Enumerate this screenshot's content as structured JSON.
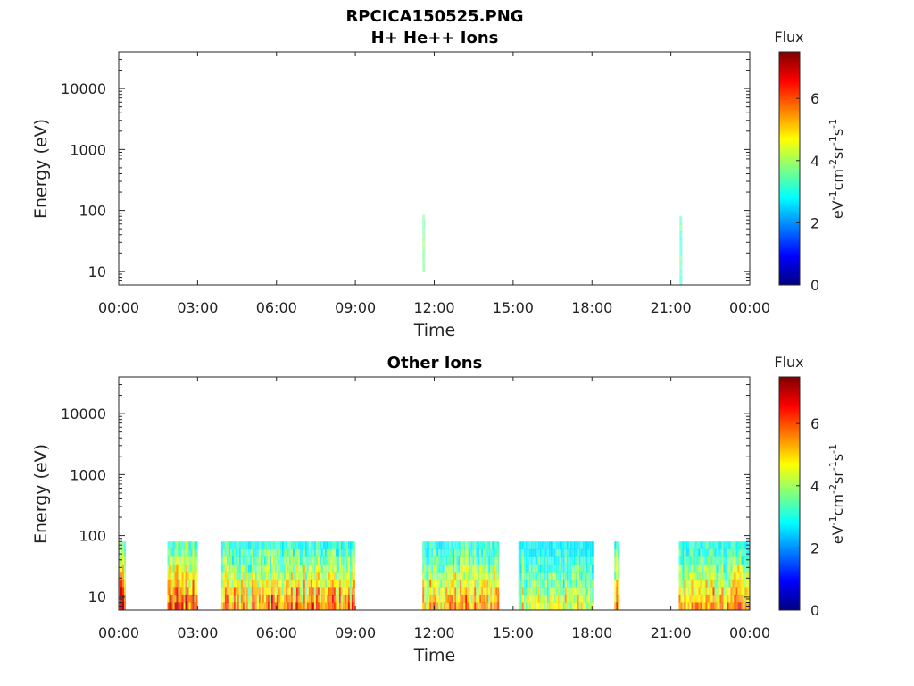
{
  "figure": {
    "title": "RPCICA150525.PNG"
  },
  "chart_data": [
    {
      "type": "heatmap",
      "title": "H+ He++ Ions",
      "xlabel": "Time",
      "ylabel": "Energy (eV)",
      "x_ticks": [
        "00:00",
        "03:00",
        "06:00",
        "09:00",
        "12:00",
        "15:00",
        "18:00",
        "21:00",
        "00:00"
      ],
      "xlim_hours": [
        0,
        24
      ],
      "y_scale": "log",
      "ylim": [
        6,
        40000
      ],
      "y_ticks": [
        10,
        100,
        1000,
        10000
      ],
      "y_tick_labels": [
        "10",
        "100",
        "1000",
        "10000"
      ],
      "colorbar": {
        "title": "Flux",
        "label": "eV-1cm-2sr-1s-1",
        "range": [
          0,
          7.5
        ],
        "ticks": [
          0,
          2,
          4,
          6
        ],
        "tick_labels": [
          "0",
          "2",
          "4",
          "6"
        ],
        "colormap": "jet"
      },
      "bursts": [
        {
          "start_hour": 11.55,
          "end_hour": 11.62,
          "energy_min": 10,
          "energy_max": 85,
          "level": 3.8
        },
        {
          "start_hour": 21.33,
          "end_hour": 21.4,
          "energy_min": 6,
          "energy_max": 80,
          "level": 3.5
        }
      ]
    },
    {
      "type": "heatmap",
      "title": "Other Ions",
      "xlabel": "Time",
      "ylabel": "Energy (eV)",
      "x_ticks": [
        "00:00",
        "03:00",
        "06:00",
        "09:00",
        "12:00",
        "15:00",
        "18:00",
        "21:00",
        "00:00"
      ],
      "xlim_hours": [
        0,
        24
      ],
      "y_scale": "log",
      "ylim": [
        6,
        40000
      ],
      "y_ticks": [
        10,
        100,
        1000,
        10000
      ],
      "y_tick_labels": [
        "10",
        "100",
        "1000",
        "10000"
      ],
      "colorbar": {
        "title": "Flux",
        "label": "eV-1cm-2sr-1s-1",
        "range": [
          0,
          7.5
        ],
        "ticks": [
          0,
          2,
          4,
          6
        ],
        "tick_labels": [
          "0",
          "2",
          "4",
          "6"
        ],
        "colormap": "jet"
      },
      "bursts": [
        {
          "start_hour": 0.0,
          "end_hour": 0.25,
          "energy_min": 6,
          "energy_max": 80,
          "level": 6.8
        },
        {
          "start_hour": 1.85,
          "end_hour": 3.0,
          "energy_min": 6,
          "energy_max": 80,
          "level": 6.8
        },
        {
          "start_hour": 3.9,
          "end_hour": 8.95,
          "energy_min": 6,
          "energy_max": 80,
          "level": 5.9
        },
        {
          "start_hour": 11.55,
          "end_hour": 14.45,
          "energy_min": 6,
          "energy_max": 80,
          "level": 5.7
        },
        {
          "start_hour": 15.2,
          "end_hour": 18.0,
          "energy_min": 6,
          "energy_max": 80,
          "level": 4.9
        },
        {
          "start_hour": 18.85,
          "end_hour": 19.05,
          "energy_min": 6,
          "energy_max": 80,
          "level": 6.5
        },
        {
          "start_hour": 21.3,
          "end_hour": 24.0,
          "energy_min": 6,
          "energy_max": 80,
          "level": 5.8
        }
      ]
    }
  ]
}
